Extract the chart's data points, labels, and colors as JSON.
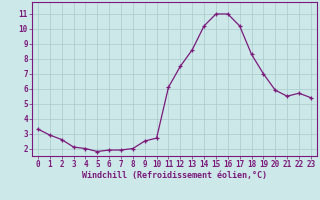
{
  "x": [
    0,
    1,
    2,
    3,
    4,
    5,
    6,
    7,
    8,
    9,
    10,
    11,
    12,
    13,
    14,
    15,
    16,
    17,
    18,
    19,
    20,
    21,
    22,
    23
  ],
  "y": [
    3.3,
    2.9,
    2.6,
    2.1,
    2.0,
    1.8,
    1.9,
    1.9,
    2.0,
    2.5,
    2.7,
    6.1,
    7.5,
    8.6,
    10.2,
    11.0,
    11.0,
    10.2,
    8.3,
    7.0,
    5.9,
    5.5,
    5.7,
    5.4
  ],
  "line_color": "#7B1A7B",
  "marker": "+",
  "marker_size": 3,
  "bg_color": "#cce8e8",
  "grid_color": "#aacccc",
  "xlabel": "Windchill (Refroidissement éolien,°C)",
  "xlabel_color": "#7B1A7B",
  "ylabel_ticks": [
    2,
    3,
    4,
    5,
    6,
    7,
    8,
    9,
    10,
    11
  ],
  "xlim": [
    -0.5,
    23.5
  ],
  "ylim": [
    1.5,
    11.8
  ],
  "tick_label_color": "#7B1A7B",
  "spine_color": "#7B1A7B",
  "tick_fontsize": 5.5,
  "xlabel_fontsize": 6.0
}
